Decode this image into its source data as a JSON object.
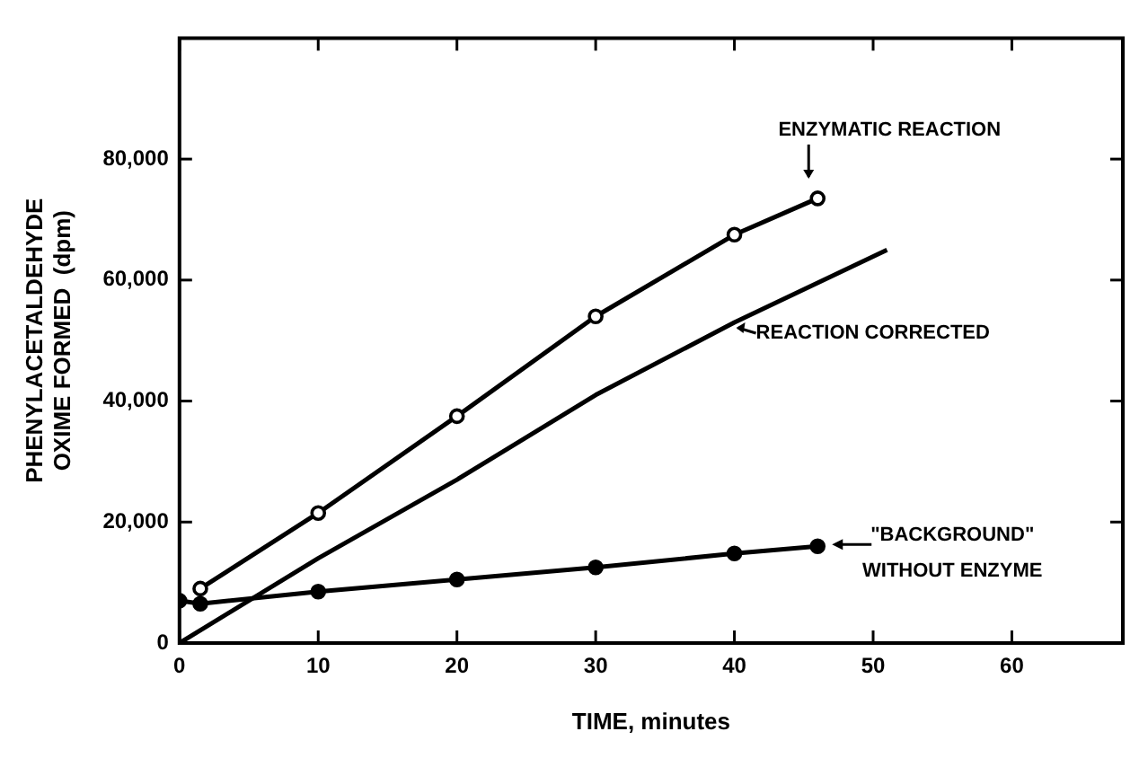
{
  "chart_data": {
    "type": "line",
    "xlabel": "TIME, minutes",
    "ylabel": "PHENYLACETALDEHYDE\nOXIME FORMED  (dpm)",
    "xlim": [
      0,
      68
    ],
    "xticks": [
      0,
      10,
      20,
      30,
      40,
      50,
      60
    ],
    "ylim": [
      0,
      100000
    ],
    "yticks": [
      0,
      {
        "value": 20000,
        "label": "20,000"
      },
      {
        "value": 40000,
        "label": "40,000"
      },
      {
        "value": 60000,
        "label": "60,000"
      },
      {
        "value": 80000,
        "label": "80,000"
      }
    ],
    "grid": false,
    "legend": "right",
    "line_style": "solid",
    "series": [
      {
        "name": "ENZYMATIC REACTION",
        "color": "#000000",
        "marker": "circle",
        "x": [
          1.5,
          10,
          20,
          30,
          40,
          46
        ],
        "values": [
          9000,
          21500,
          37500,
          54000,
          67500,
          73500
        ]
      },
      {
        "name": "REACTION CORRECTED",
        "color": "#000000",
        "marker": "none",
        "x": [
          0,
          10,
          20,
          30,
          40,
          51
        ],
        "values": [
          0,
          14000,
          27000,
          41000,
          53000,
          65000
        ]
      },
      {
        "name": "\"BACKGROUND\"\nWITHOUT ENZYME",
        "color": "#000000",
        "marker": "circle",
        "x": [
          0,
          1.5,
          10,
          20,
          30,
          40,
          46
        ],
        "values": [
          7000,
          6500,
          8500,
          10500,
          12500,
          14800,
          16000
        ]
      }
    ]
  }
}
